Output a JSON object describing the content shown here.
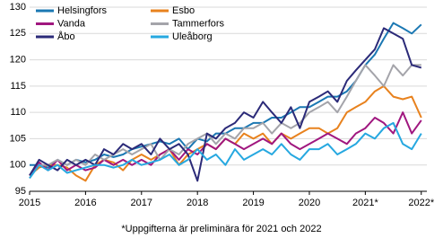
{
  "chart_data": {
    "type": "line",
    "x": [
      2015,
      2015.17,
      2015.33,
      2015.5,
      2015.67,
      2015.83,
      2016,
      2016.17,
      2016.33,
      2016.5,
      2016.67,
      2016.83,
      2017,
      2017.17,
      2017.33,
      2017.5,
      2017.67,
      2017.83,
      2018,
      2018.17,
      2018.33,
      2018.5,
      2018.67,
      2018.83,
      2019,
      2019.17,
      2019.33,
      2019.5,
      2019.67,
      2019.83,
      2020,
      2020.17,
      2020.33,
      2020.5,
      2020.67,
      2020.83,
      2021,
      2021.17,
      2021.33,
      2021.5,
      2021.67,
      2021.83,
      2022
    ],
    "series": [
      {
        "name": "Helsingfors",
        "color": "#1b78b3",
        "values": [
          100,
          100,
          99.5,
          101,
          100,
          101,
          100.5,
          101,
          102,
          101.5,
          102,
          103,
          103.5,
          104,
          104.5,
          104,
          105,
          103,
          105,
          104.5,
          106,
          106,
          107,
          107,
          108,
          108,
          109,
          109,
          110,
          111,
          111,
          112,
          113,
          113,
          114,
          116,
          119,
          121,
          124,
          127,
          126,
          125,
          126.7
        ]
      },
      {
        "name": "Esbo",
        "color": "#e8821e",
        "values": [
          98,
          99.5,
          100,
          100,
          99.5,
          98,
          97,
          100,
          101,
          100.5,
          99,
          101,
          102,
          101,
          102,
          103,
          100,
          102,
          103,
          104,
          103,
          105,
          104,
          106,
          105,
          106,
          104,
          106,
          105,
          106,
          107,
          107,
          106,
          107,
          110,
          111,
          112,
          114,
          115,
          113,
          112.5,
          113,
          109
        ]
      },
      {
        "name": "Vanda",
        "color": "#a0177f",
        "values": [
          98,
          100.5,
          99,
          101,
          99,
          100,
          99,
          99.5,
          101,
          100,
          101,
          100,
          101,
          100,
          102,
          103,
          101,
          103,
          102,
          104,
          103,
          105,
          104,
          103,
          104,
          105,
          104,
          106,
          104,
          103,
          104,
          105,
          106,
          105,
          104,
          106,
          107,
          109,
          108,
          106,
          110,
          106,
          108.5
        ]
      },
      {
        "name": "Tammerfors",
        "color": "#a4a4aa",
        "values": [
          97.5,
          100,
          100,
          101,
          100,
          101,
          100,
          102,
          101,
          102,
          103,
          102,
          103,
          104,
          101,
          103,
          102,
          104,
          105,
          106,
          104,
          106,
          105,
          107,
          107,
          108,
          106,
          108,
          107,
          108,
          110,
          111,
          112,
          110,
          113,
          116,
          119,
          117,
          115,
          119,
          117,
          119,
          119
        ]
      },
      {
        "name": "Åbo",
        "color": "#2b2a78",
        "values": [
          98,
          101,
          100,
          99,
          101,
          100,
          101,
          100,
          103,
          102,
          104,
          103,
          104,
          102,
          105,
          103,
          104,
          102,
          97,
          106,
          105,
          107,
          108,
          110,
          109,
          112,
          110,
          108,
          111,
          107,
          112,
          113,
          114,
          112,
          116,
          118,
          120,
          122,
          126,
          125,
          124,
          119,
          118.5
        ]
      },
      {
        "name": "Uleåborg",
        "color": "#26a8e0",
        "values": [
          97.5,
          100,
          99,
          100,
          98.5,
          99,
          99.5,
          100,
          100,
          99.5,
          100,
          101,
          100,
          100.5,
          101,
          102,
          100,
          101,
          103,
          101,
          102,
          100,
          103,
          101,
          102,
          103,
          102,
          104,
          102,
          101,
          103,
          103,
          104,
          102,
          103,
          104,
          106,
          105,
          107,
          108,
          104,
          103,
          106
        ]
      }
    ],
    "xlim": [
      2015,
      2022.1
    ],
    "xticks": [
      2015,
      2016,
      2017,
      2018,
      2019,
      2020,
      {
        "value": 2021,
        "label": "2021*"
      },
      {
        "value": 2022,
        "label": "2022*"
      }
    ],
    "ylim": [
      95,
      130
    ],
    "yticks": [
      95,
      100,
      105,
      110,
      115,
      120,
      125,
      130
    ],
    "grid": true,
    "legend": "top-left",
    "note": "*Uppgifterna är preliminära för 2021 och 2022"
  }
}
